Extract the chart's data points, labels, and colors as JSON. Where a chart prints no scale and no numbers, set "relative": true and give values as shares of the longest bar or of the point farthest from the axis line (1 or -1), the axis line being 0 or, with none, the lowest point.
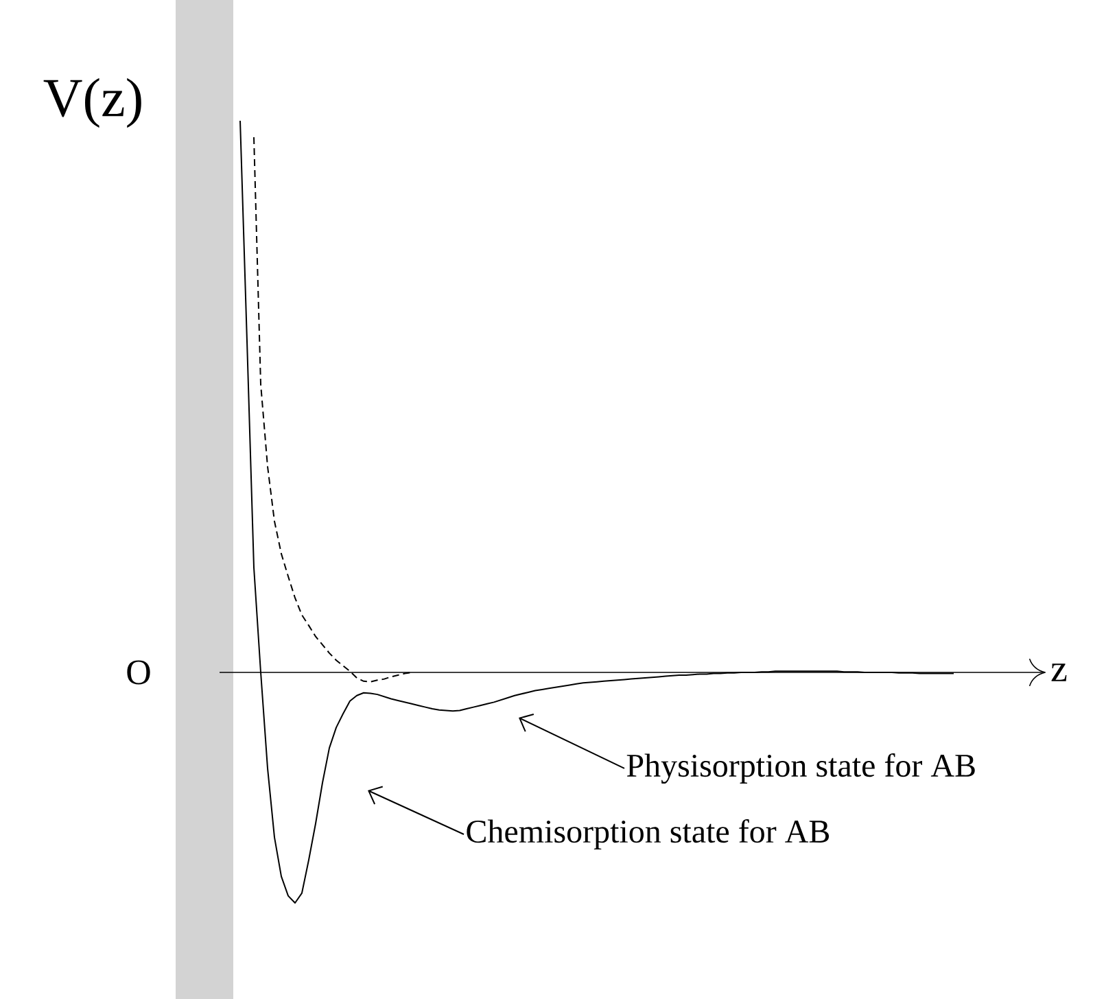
{
  "chart_data": {
    "type": "line",
    "relative": true,
    "xlabel": "z",
    "ylabel": "V(z)",
    "categories": [
      null,
      null,
      null,
      null,
      null,
      null,
      null,
      null,
      null,
      null,
      null,
      null,
      null,
      null,
      null,
      null,
      null,
      null,
      null,
      null,
      null,
      null,
      null,
      null,
      null,
      null,
      null,
      null,
      null,
      null,
      null,
      null,
      null,
      null,
      null,
      null,
      null,
      null,
      null,
      null,
      null,
      null,
      null,
      null,
      null,
      null,
      null,
      null,
      null,
      null,
      null,
      null,
      null,
      null,
      null,
      null,
      null,
      null,
      null,
      null,
      null,
      null,
      null,
      null,
      null,
      null,
      null,
      null,
      null,
      null,
      null,
      null,
      null,
      null,
      null,
      null,
      null,
      null,
      null,
      null,
      null,
      null,
      null,
      null,
      null,
      null,
      null,
      null,
      null,
      null,
      null,
      null,
      null,
      null,
      null,
      null,
      null,
      null,
      null,
      null,
      null,
      null,
      null,
      null,
      null
    ],
    "series": [
      {
        "color": "#000000",
        "line_style": "solid",
        "values": [
          1.0,
          0.6,
          0.19,
          0,
          -0.174,
          -0.299,
          -0.37,
          -0.405,
          -0.418,
          -0.4,
          -0.34,
          -0.274,
          -0.2,
          -0.137,
          -0.1,
          -0.075,
          -0.052,
          -0.042,
          -0.037,
          -0.038,
          -0.04,
          -0.044,
          -0.048,
          -0.051,
          -0.054,
          -0.057,
          -0.06,
          -0.063,
          -0.066,
          -0.068,
          -0.069,
          -0.07,
          -0.069,
          -0.066,
          -0.063,
          -0.06,
          -0.057,
          -0.054,
          -0.05,
          -0.046,
          -0.042,
          -0.039,
          -0.036,
          -0.033,
          -0.031,
          -0.029,
          -0.027,
          -0.025,
          -0.023,
          -0.021,
          -0.019,
          -0.018,
          -0.017,
          -0.016,
          -0.015,
          -0.014,
          -0.013,
          -0.012,
          -0.011,
          -0.01,
          -0.009,
          -0.008,
          -0.007,
          -0.006,
          -0.005,
          -0.005,
          -0.004,
          -0.003,
          -0.003,
          -0.002,
          -0.002,
          -0.001,
          -0.001,
          0,
          0,
          0,
          0.001,
          0.001,
          0.002,
          0.002,
          0.002,
          0.002,
          0.002,
          0.002,
          0.002,
          0.002,
          0.002,
          0.002,
          0.001,
          0.001,
          0.001,
          0,
          0,
          0,
          0,
          0,
          -0.001,
          -0.001,
          -0.001,
          -0.002,
          -0.002,
          -0.002,
          -0.002,
          -0.002,
          -0.002
        ]
      },
      {
        "color": "#000000",
        "line_style": "dashed",
        "values": [
          null,
          null,
          0.97,
          0.522,
          0.373,
          0.274,
          0.215,
          0.174,
          0.135,
          0.104,
          0.085,
          0.065,
          0.05,
          0.035,
          0.022,
          0.012,
          0.002,
          -0.01,
          -0.016,
          -0.017,
          -0.014,
          -0.012,
          -0.008,
          -0.005,
          -0.002,
          0,
          null,
          null,
          null,
          null,
          null,
          null,
          null,
          null,
          null,
          null,
          null,
          null,
          null,
          null,
          null,
          null,
          null,
          null,
          null,
          null,
          null,
          null,
          null,
          null,
          null,
          null,
          null,
          null,
          null,
          null,
          null,
          null,
          null,
          null,
          null,
          null,
          null,
          null,
          null,
          null,
          null,
          null,
          null,
          null,
          null,
          null,
          null,
          null,
          null,
          null,
          null,
          null,
          null,
          null,
          null,
          null,
          null,
          null,
          null,
          null,
          null,
          null,
          null,
          null,
          null,
          null,
          null,
          null,
          null,
          null,
          null,
          null,
          null,
          null,
          null,
          null,
          null,
          null,
          null
        ]
      }
    ],
    "annotations": [
      "O",
      "Physisorption state for AB",
      "Chemisorption state for AB"
    ]
  }
}
